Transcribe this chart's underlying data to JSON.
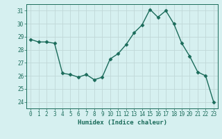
{
  "x": [
    0,
    1,
    2,
    3,
    4,
    5,
    6,
    7,
    8,
    9,
    10,
    11,
    12,
    13,
    14,
    15,
    16,
    17,
    18,
    19,
    20,
    21,
    22,
    23
  ],
  "y": [
    28.8,
    28.6,
    28.6,
    28.5,
    26.2,
    26.1,
    25.9,
    26.1,
    25.7,
    25.9,
    27.3,
    27.7,
    28.4,
    29.3,
    29.9,
    31.1,
    30.5,
    31.0,
    30.0,
    28.5,
    27.5,
    26.3,
    26.0,
    24.0
  ],
  "line_color": "#1a6b5a",
  "marker": "D",
  "marker_size": 2.5,
  "bg_color": "#d6f0f0",
  "grid_color": "#c0d8d8",
  "xlabel": "Humidex (Indice chaleur)",
  "ylim": [
    23.5,
    31.5
  ],
  "xlim": [
    -0.5,
    23.5
  ],
  "yticks": [
    24,
    25,
    26,
    27,
    28,
    29,
    30,
    31
  ],
  "xticks": [
    0,
    1,
    2,
    3,
    4,
    5,
    6,
    7,
    8,
    9,
    10,
    11,
    12,
    13,
    14,
    15,
    16,
    17,
    18,
    19,
    20,
    21,
    22,
    23
  ],
  "tick_color": "#1a6b5a",
  "label_fontsize": 6.5,
  "tick_fontsize": 5.5,
  "linewidth": 1.0
}
